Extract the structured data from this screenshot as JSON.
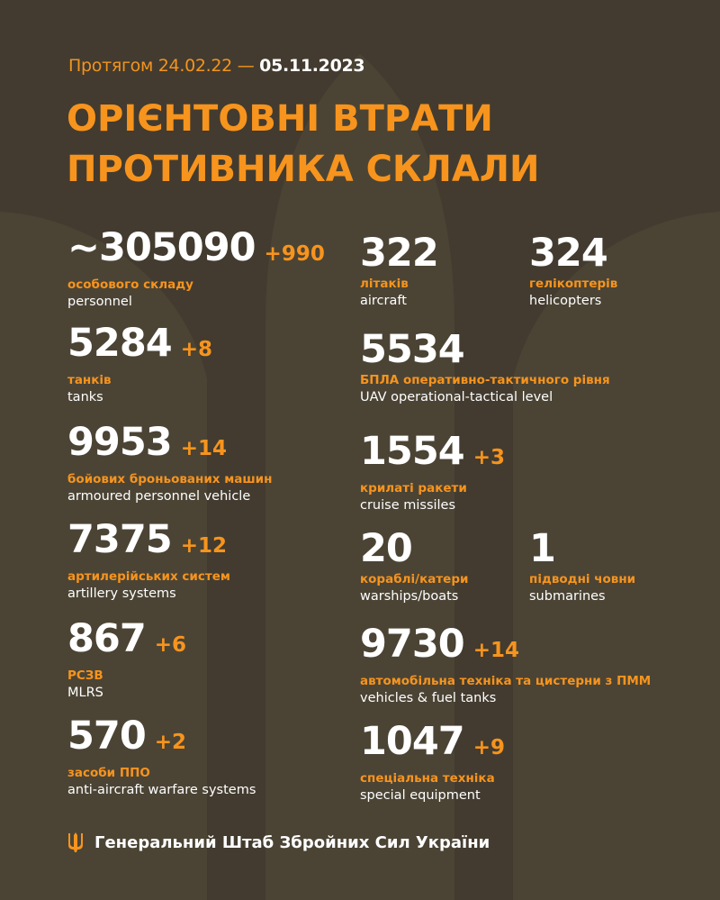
{
  "header": {
    "period_prefix": "Протягом 24.02.22 —",
    "period_date": "05.11.2023",
    "title_line1": "ОРІЄНТОВНІ ВТРАТИ",
    "title_line2": "ПРОТИВНИКА СКЛАЛИ"
  },
  "colors": {
    "background": "#433b2f",
    "accent": "#f7941d",
    "text": "#ffffff"
  },
  "items": [
    {
      "value": "~305090",
      "delta": "+990",
      "ua": "особового складу",
      "en": "personnel"
    },
    {
      "value": "322",
      "delta": "",
      "ua": "літаків",
      "en": "aircraft"
    },
    {
      "value": "324",
      "delta": "",
      "ua": "гелікоптерів",
      "en": "helicopters"
    },
    {
      "value": "5284",
      "delta": "+8",
      "ua": "танків",
      "en": "tanks"
    },
    {
      "value": "5534",
      "delta": "",
      "ua": "БПЛА оперативно-тактичного рівня",
      "en": "UAV operational-tactical level"
    },
    {
      "value": "9953",
      "delta": "+14",
      "ua": "бойових броньованих машин",
      "en": "armoured personnel vehicle"
    },
    {
      "value": "1554",
      "delta": "+3",
      "ua": "крилаті ракети",
      "en": "cruise missiles"
    },
    {
      "value": "7375",
      "delta": "+12",
      "ua": "артилерійських систем",
      "en": "artillery systems"
    },
    {
      "value": "20",
      "delta": "",
      "ua": "кораблі/катери",
      "en": "warships/boats"
    },
    {
      "value": "1",
      "delta": "",
      "ua": "підводні човни",
      "en": "submarines"
    },
    {
      "value": "867",
      "delta": "+6",
      "ua": "РСЗВ",
      "en": "MLRS"
    },
    {
      "value": "9730",
      "delta": "+14",
      "ua": "автомобільна техніка та цистерни з ПММ",
      "en": "vehicles & fuel tanks"
    },
    {
      "value": "570",
      "delta": "+2",
      "ua": "засоби ППО",
      "en": "anti-aircraft warfare systems"
    },
    {
      "value": "1047",
      "delta": "+9",
      "ua": "спеціальна техніка",
      "en": "special equipment"
    }
  ],
  "footer": {
    "icon": "trident-icon",
    "text": "Генеральний Штаб Збройних Сил України"
  }
}
